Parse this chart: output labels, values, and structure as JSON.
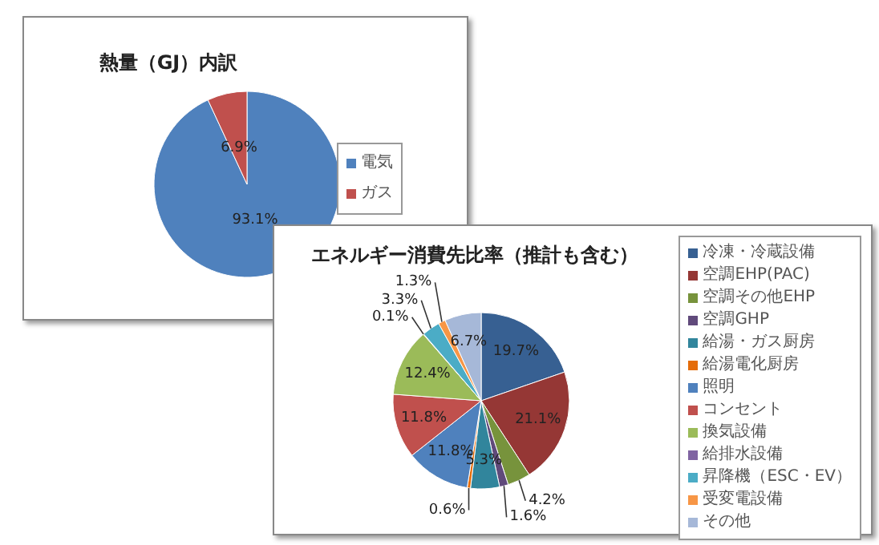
{
  "chart_data": [
    {
      "type": "pie",
      "title": "熱量（GJ）内訳",
      "categories": [
        "電気",
        "ガス"
      ],
      "values": [
        93.1,
        6.9
      ],
      "value_labels": [
        "93.1%",
        "6.9%"
      ],
      "colors": [
        "#4f81bd",
        "#c0504d"
      ],
      "legend": "right"
    },
    {
      "type": "pie",
      "title": "エネルギー消費先比率（推計も含む）",
      "categories": [
        "冷凍・冷蔵設備",
        "空調EHP(PAC)",
        "空調その他EHP",
        "空調GHP",
        "給湯・ガス厨房",
        "給湯電化厨房",
        "照明",
        "コンセント",
        "換気設備",
        "給排水設備",
        "昇降機（ESC・EV）",
        "受変電設備",
        "その他"
      ],
      "values": [
        19.7,
        21.1,
        4.2,
        1.6,
        5.3,
        0.6,
        11.8,
        11.8,
        12.4,
        0.1,
        3.3,
        1.3,
        6.7
      ],
      "value_labels": [
        "19.7%",
        "21.1%",
        "4.2%",
        "1.6%",
        "5.3%",
        "0.6%",
        "11.8%",
        "11.8%",
        "12.4%",
        "0.1%",
        "3.3%",
        "1.3%",
        "6.7%"
      ],
      "colors": [
        "#376092",
        "#953735",
        "#77933c",
        "#604a7b",
        "#31859c",
        "#e46c0a",
        "#4f81bd",
        "#c0504d",
        "#9bbb59",
        "#8064a2",
        "#4bacc6",
        "#f79646",
        "#a6b8d8"
      ],
      "legend": "right"
    }
  ]
}
